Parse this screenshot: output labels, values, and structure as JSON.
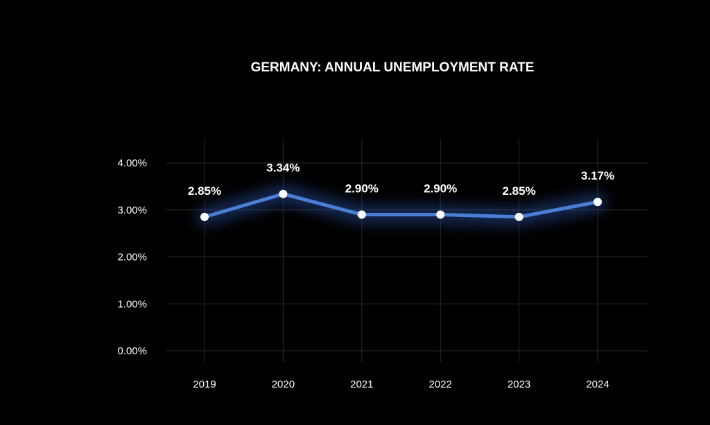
{
  "chart_data": {
    "type": "line",
    "title": "GERMANY: ANNUAL UNEMPLOYMENT RATE",
    "xlabel": "",
    "ylabel": "",
    "categories": [
      "2019",
      "2020",
      "2021",
      "2022",
      "2023",
      "2024"
    ],
    "series": [
      {
        "name": "Unemployment rate",
        "values": [
          2.85,
          3.34,
          2.9,
          2.9,
          2.85,
          3.17
        ],
        "labels": [
          "2.85%",
          "3.34%",
          "2.90%",
          "2.90%",
          "2.85%",
          "3.17%"
        ]
      }
    ],
    "ylim": [
      0,
      4
    ],
    "yticks": [
      0,
      1,
      2,
      3,
      4
    ],
    "ytick_labels": [
      "0.00%",
      "1.00%",
      "2.00%",
      "3.00%",
      "4.00%"
    ],
    "grid": true,
    "legend": "none"
  },
  "colors": {
    "background": "#000000",
    "line": "#4a7fd6",
    "glow": "#2b4fa0",
    "point": "#ffffff",
    "text": "#ffffff",
    "grid": "#2a2a2a"
  }
}
